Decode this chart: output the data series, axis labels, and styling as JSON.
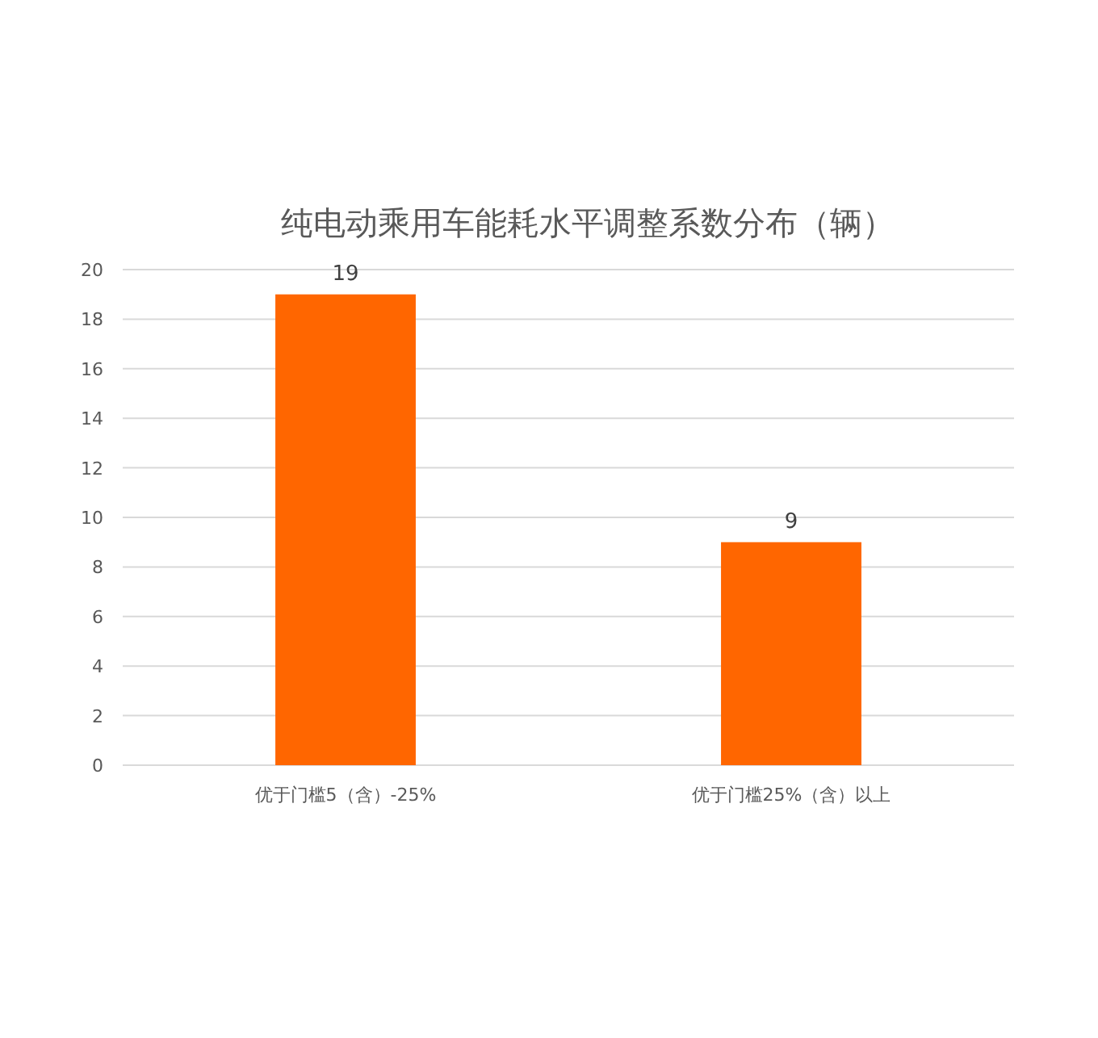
{
  "chart_data": {
    "type": "bar",
    "title": "纯电动乘用车能耗水平调整系数分布（辆）",
    "categories": [
      "优于门槛5（含）-25%",
      "优于门槛25%（含）以上"
    ],
    "values": [
      19,
      9
    ],
    "color": "#ff6600",
    "ylim": [
      0,
      20
    ],
    "yticks": [
      0,
      2,
      4,
      6,
      8,
      10,
      12,
      14,
      16,
      18,
      20
    ],
    "grid": "y",
    "data_labels": true
  }
}
